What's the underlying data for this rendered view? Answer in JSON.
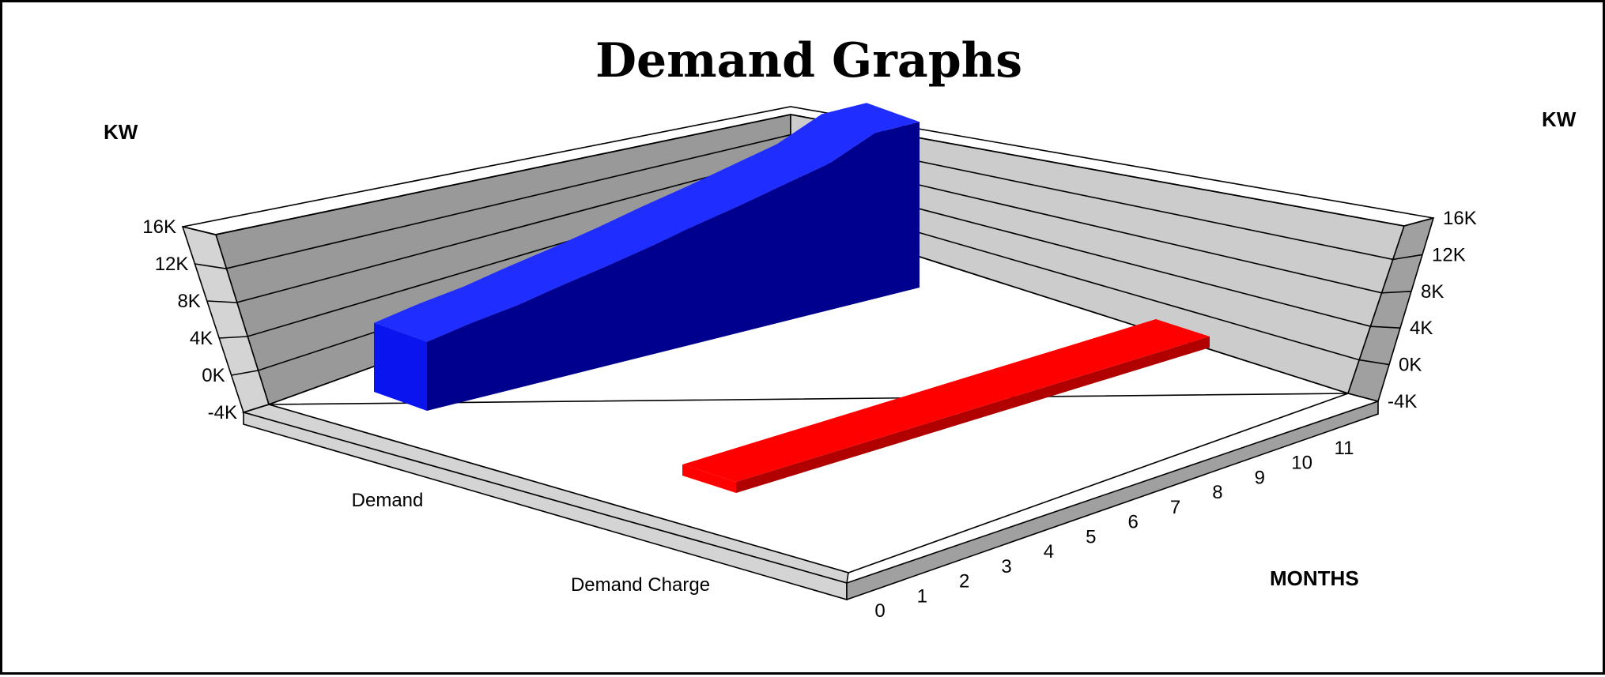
{
  "chart_data": {
    "type": "bar",
    "title": "Demand Graphs",
    "ylabel": "KW",
    "xlabel": "MONTHS",
    "z_categories": [
      "Demand",
      "Demand Charge"
    ],
    "yticks": [
      "16K",
      "12K",
      "8K",
      "4K",
      "0K",
      "-4K"
    ],
    "ylim": [
      -4000,
      16000
    ],
    "x_tick_labels": [
      "0",
      "1",
      "2",
      "3",
      "4",
      "5",
      "6",
      "7",
      "8",
      "9",
      "10",
      "11"
    ],
    "grid": true,
    "series": [
      {
        "name": "Demand",
        "style": "3d-ribbon",
        "x": [
          0,
          1,
          2,
          3,
          4,
          5,
          6,
          7,
          8,
          9,
          10,
          11
        ],
        "values": [
          5700,
          6500,
          7100,
          8000,
          8800,
          9700,
          10700,
          11600,
          12600,
          13600,
          15500,
          15500
        ]
      },
      {
        "name": "Demand Charge",
        "style": "3d-ribbon",
        "x": [
          0,
          1,
          2,
          3,
          4,
          5,
          6,
          7,
          8,
          9,
          10,
          11
        ],
        "values": [
          0,
          0,
          0,
          0,
          0,
          0,
          0,
          0,
          0,
          0,
          0,
          0
        ]
      }
    ]
  },
  "colors": {
    "demand_top": "#1f2eff",
    "demand_front": "#00008f",
    "demand_end": "#0a14ee",
    "charge_top": "#ff0000",
    "charge_front": "#b00000",
    "back_wall": "#999999",
    "side_wall": "#cccccc",
    "floor": "#ffffff",
    "slab_light": "#d4d4d4",
    "slab_dark": "#a0a0a0"
  }
}
